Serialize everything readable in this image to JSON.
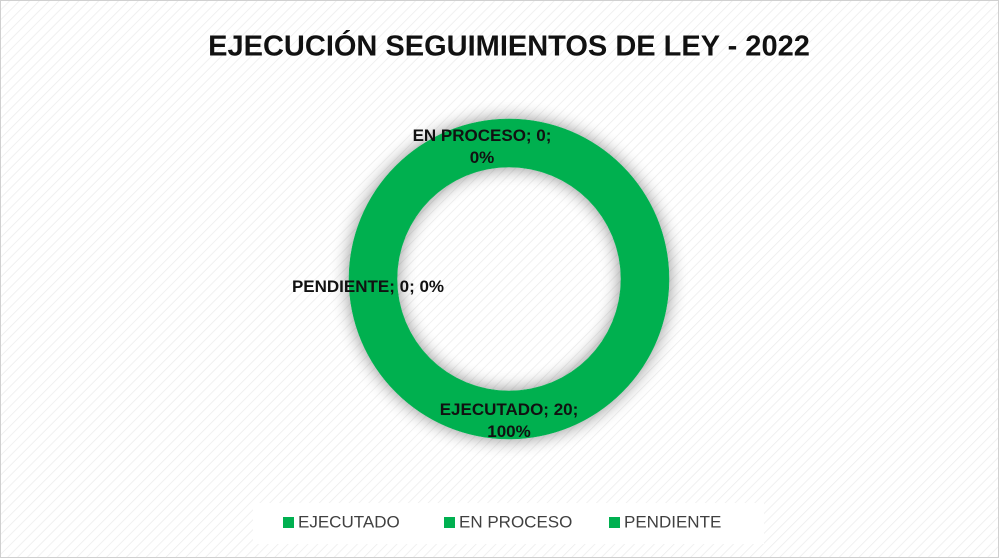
{
  "chart_data": {
    "type": "donut",
    "title": "EJECUCIÓN SEGUIMIENTOS DE LEY - 2022",
    "categories": [
      "EJECUTADO",
      "EN PROCESO",
      "PENDIENTE"
    ],
    "values": [
      20,
      0,
      0
    ],
    "value_labels": [
      "EJECUTADO; 20; 100%",
      "EN PROCESO; 0; 0%",
      "PENDIENTE; 0; 0%"
    ],
    "colors": [
      "#00b050",
      "#00b050",
      "#00b050"
    ],
    "legend": "bottom"
  }
}
